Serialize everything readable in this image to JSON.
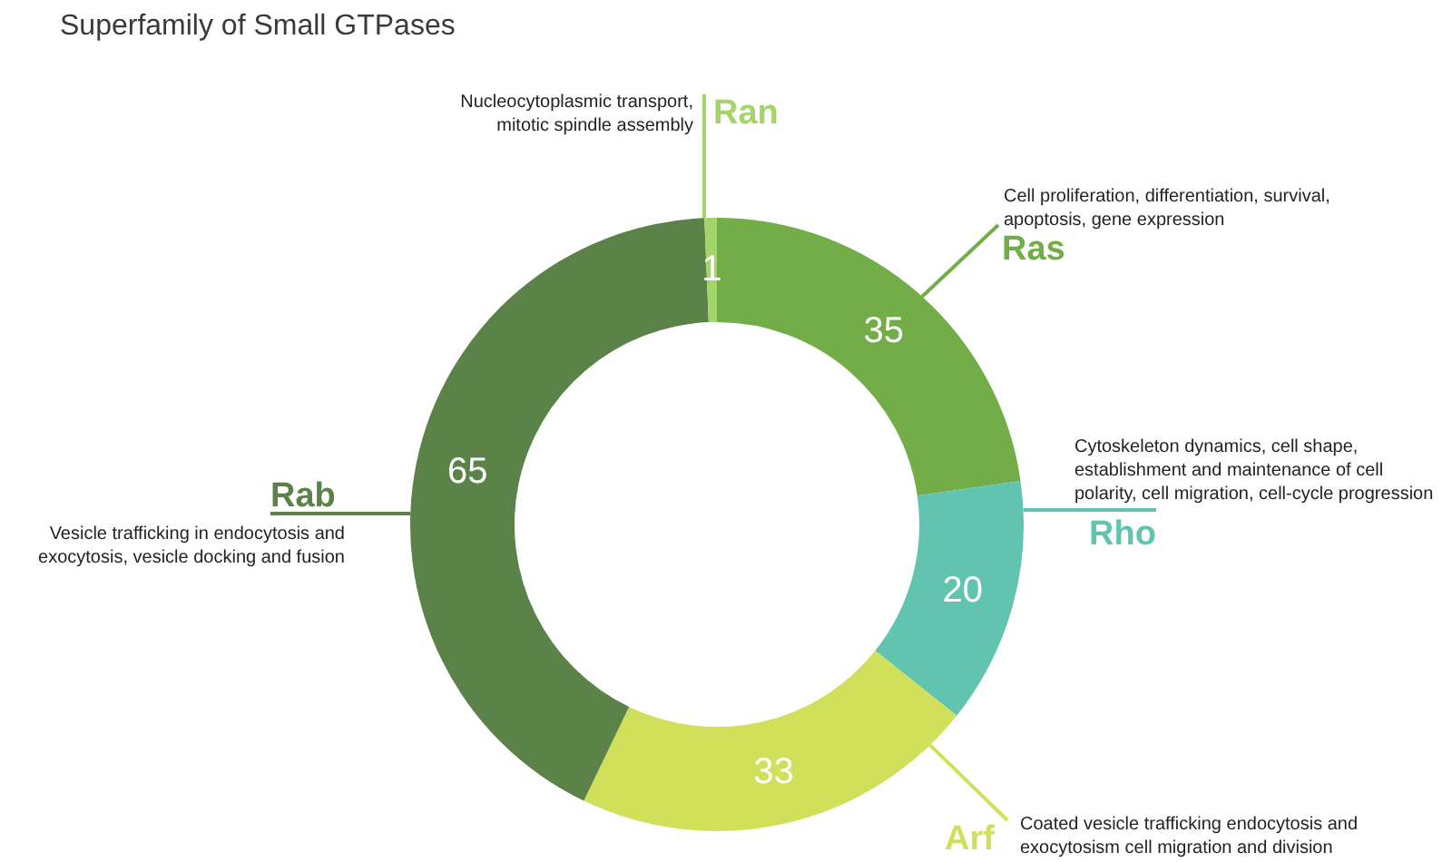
{
  "chart_data": {
    "type": "donut",
    "title": "Superfamily of Small GTPases",
    "categories": [
      "Ras",
      "Rho",
      "Arf",
      "Rab",
      "Ran"
    ],
    "values": [
      35,
      20,
      33,
      65,
      1
    ],
    "colors": [
      "#72ad47",
      "#60c4b0",
      "#d1e05a",
      "#5b8248",
      "#a5d46a"
    ],
    "data_labels": true,
    "annotations": [
      "Cell proliferation, differentiation, survival, apoptosis, gene expression",
      "Cytoskeleton dynamics, cell shape, establishment and maintenance of cell polarity, cell migration, cell-cycle progression",
      "Coated vesicle trafficking endocytosis and exocytosism cell migration and division",
      "Vesicle trafficking in endocytosis and exocytosis, vesicle docking and fusion",
      "Nucleocytoplasmic transport, mitotic spindle assembly"
    ]
  }
}
